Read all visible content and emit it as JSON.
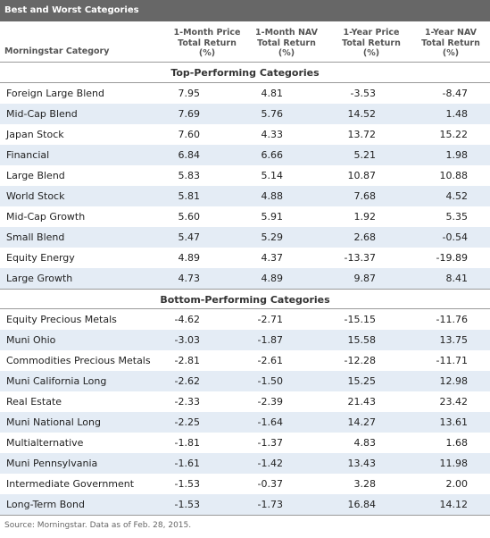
{
  "title": "Best and Worst Categories",
  "headers": {
    "category": "Morningstar Category",
    "col1": [
      "1-Month Price",
      "Total Return",
      "(%)"
    ],
    "col2": [
      "1-Month NAV",
      "Total Return",
      "(%)"
    ],
    "col3": [
      "1-Year Price",
      "Total Return",
      "(%)"
    ],
    "col4": [
      "1-Year NAV",
      "Total Return",
      "(%)"
    ]
  },
  "top_section": {
    "label": "Top-Performing Categories",
    "rows": [
      {
        "category": "Foreign Large Blend",
        "values": [
          "7.95",
          "4.81",
          "-3.53",
          "-8.47"
        ]
      },
      {
        "category": "Mid-Cap Blend",
        "values": [
          "7.69",
          "5.76",
          "14.52",
          "1.48"
        ]
      },
      {
        "category": "Japan Stock",
        "values": [
          "7.60",
          "4.33",
          "13.72",
          "15.22"
        ]
      },
      {
        "category": "Financial",
        "values": [
          "6.84",
          "6.66",
          "5.21",
          "1.98"
        ]
      },
      {
        "category": "Large Blend",
        "values": [
          "5.83",
          "5.14",
          "10.87",
          "10.88"
        ]
      },
      {
        "category": "World Stock",
        "values": [
          "5.81",
          "4.88",
          "7.68",
          "4.52"
        ]
      },
      {
        "category": "Mid-Cap Growth",
        "values": [
          "5.60",
          "5.91",
          "1.92",
          "5.35"
        ]
      },
      {
        "category": "Small Blend",
        "values": [
          "5.47",
          "5.29",
          "2.68",
          "-0.54"
        ]
      },
      {
        "category": "Equity Energy",
        "values": [
          "4.89",
          "4.37",
          "-13.37",
          "-19.89"
        ]
      },
      {
        "category": "Large Growth",
        "values": [
          "4.73",
          "4.89",
          "9.87",
          "8.41"
        ]
      }
    ]
  },
  "bottom_section": {
    "label": "Bottom-Performing Categories",
    "rows": [
      {
        "category": "Equity Precious Metals",
        "values": [
          "-4.62",
          "-2.71",
          "-15.15",
          "-11.76"
        ]
      },
      {
        "category": "Muni Ohio",
        "values": [
          "-3.03",
          "-1.87",
          "15.58",
          "13.75"
        ]
      },
      {
        "category": "Commodities Precious Metals",
        "values": [
          "-2.81",
          "-2.61",
          "-12.28",
          "-11.71"
        ]
      },
      {
        "category": "Muni California Long",
        "values": [
          "-2.62",
          "-1.50",
          "15.25",
          "12.98"
        ]
      },
      {
        "category": "Real Estate",
        "values": [
          "-2.33",
          "-2.39",
          "21.43",
          "23.42"
        ]
      },
      {
        "category": "Muni National Long",
        "values": [
          "-2.25",
          "-1.64",
          "14.27",
          "13.61"
        ]
      },
      {
        "category": "Multialternative",
        "values": [
          "-1.81",
          "-1.37",
          "4.83",
          "1.68"
        ]
      },
      {
        "category": "Muni Pennsylvania",
        "values": [
          "-1.61",
          "-1.42",
          "13.43",
          "11.98"
        ]
      },
      {
        "category": "Intermediate Government",
        "values": [
          "-1.53",
          "-0.37",
          "3.28",
          "2.00"
        ]
      },
      {
        "category": "Long-Term Bond",
        "values": [
          "-1.53",
          "-1.73",
          "16.84",
          "14.12"
        ]
      }
    ]
  },
  "source": "Source: Morningstar. Data as of Feb. 28, 2015.",
  "colors": {
    "title_bg": "#676767",
    "alt_row": "#e4ecf5"
  }
}
